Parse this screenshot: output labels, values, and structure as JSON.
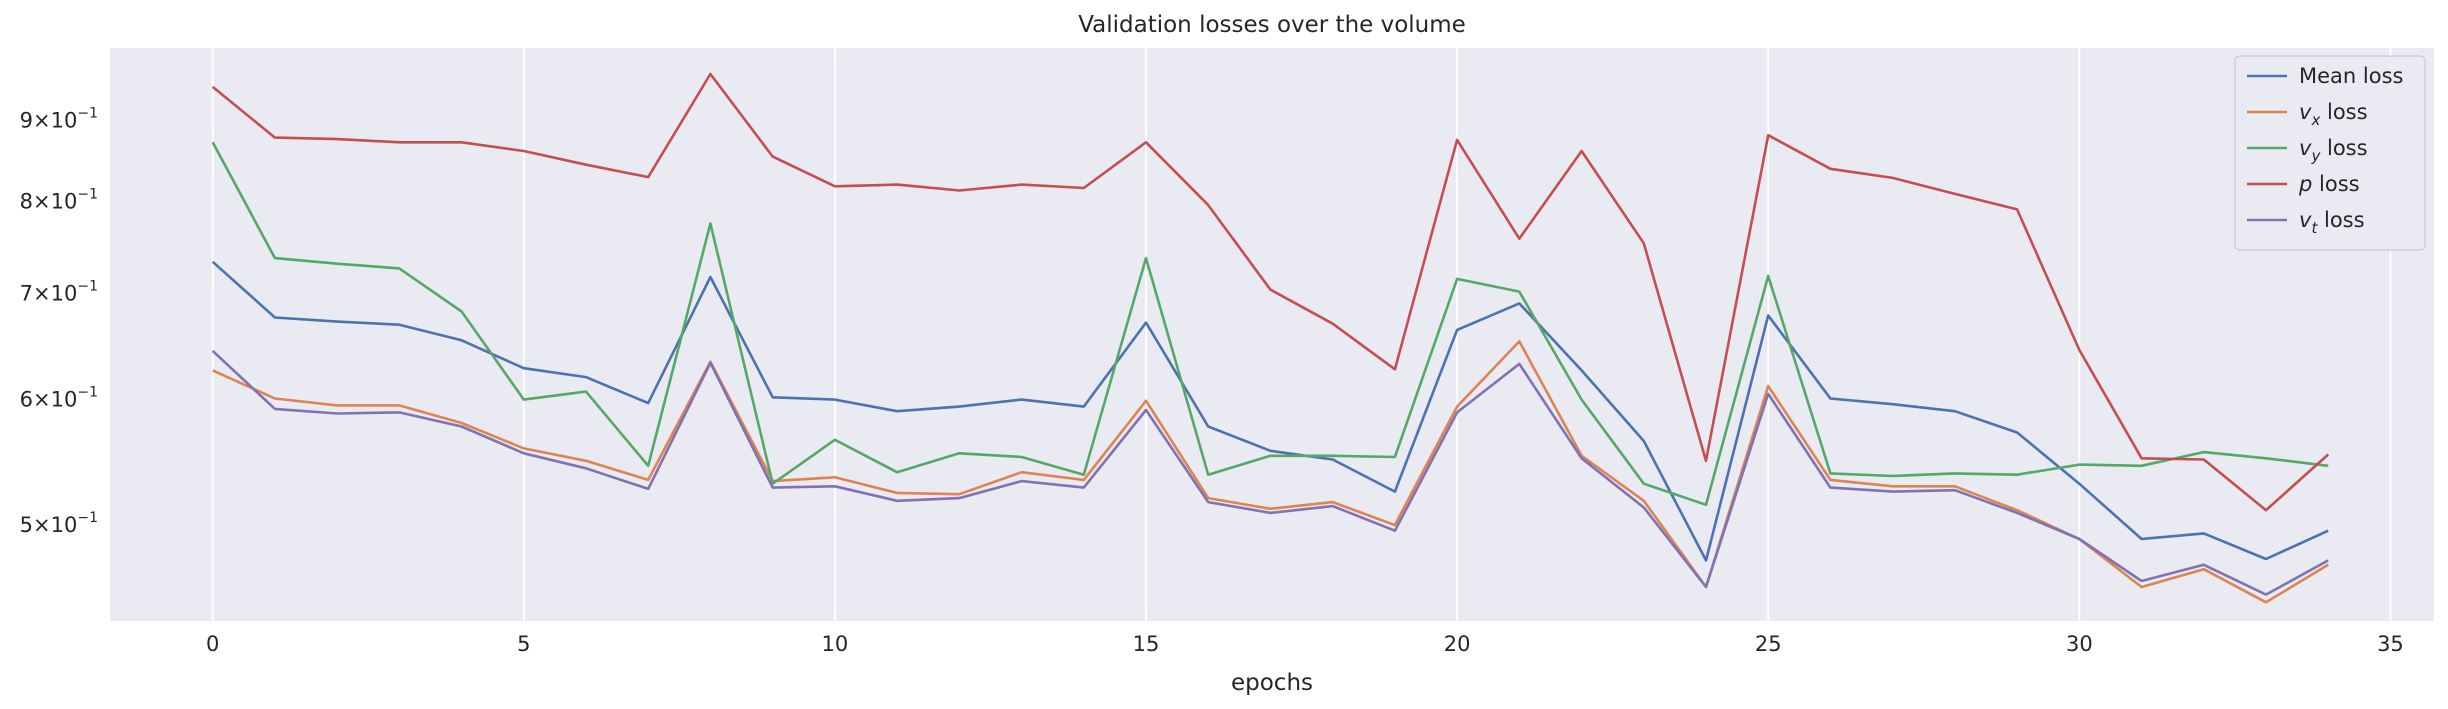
{
  "chart_data": {
    "type": "line",
    "title": "Validation losses over the volume",
    "xlabel": "epochs",
    "ylabel": "",
    "yscale": "log",
    "xlim": [
      -1.65,
      35.7
    ],
    "ylim": [
      0.435,
      1.0
    ],
    "x_ticks": [
      0,
      5,
      10,
      15,
      20,
      25,
      30,
      35
    ],
    "x_tick_labels": [
      "0",
      "5",
      "10",
      "15",
      "20",
      "25",
      "30",
      "35"
    ],
    "y_ticks": [
      {
        "value": 0.5,
        "mantissa": "5",
        "exponent": "−1"
      },
      {
        "value": 0.6,
        "mantissa": "6",
        "exponent": "−1"
      },
      {
        "value": 0.7,
        "mantissa": "7",
        "exponent": "−1"
      },
      {
        "value": 0.8,
        "mantissa": "8",
        "exponent": "−1"
      },
      {
        "value": 0.9,
        "mantissa": "9",
        "exponent": "−1"
      }
    ],
    "grid": true,
    "legend_position": "top-right",
    "x": [
      0,
      1,
      2,
      3,
      4,
      5,
      6,
      7,
      8,
      9,
      10,
      11,
      12,
      13,
      14,
      15,
      16,
      17,
      18,
      19,
      20,
      21,
      22,
      23,
      24,
      25,
      26,
      27,
      28,
      29,
      30,
      31,
      32,
      33,
      34
    ],
    "series": [
      {
        "name": "Mean loss",
        "label_main": "Mean loss",
        "label_sub": "",
        "label_suffix": "",
        "color": "#4c72b0",
        "values": [
          0.733,
          0.676,
          0.672,
          0.669,
          0.654,
          0.628,
          0.62,
          0.597,
          0.717,
          0.602,
          0.6,
          0.59,
          0.594,
          0.6,
          0.594,
          0.671,
          0.577,
          0.557,
          0.55,
          0.525,
          0.664,
          0.69,
          0.626,
          0.565,
          0.475,
          0.678,
          0.601,
          0.596,
          0.59,
          0.572,
          0.531,
          0.49,
          0.494,
          0.476,
          0.496
        ]
      },
      {
        "name": "v_x loss",
        "label_main": "v",
        "label_sub": "x",
        "label_suffix": " loss",
        "color": "#dd8452",
        "values": [
          0.626,
          0.601,
          0.595,
          0.595,
          0.58,
          0.559,
          0.549,
          0.534,
          0.634,
          0.533,
          0.536,
          0.524,
          0.523,
          0.54,
          0.534,
          0.599,
          0.52,
          0.512,
          0.517,
          0.5,
          0.594,
          0.653,
          0.553,
          0.518,
          0.457,
          0.612,
          0.534,
          0.529,
          0.529,
          0.511,
          0.49,
          0.457,
          0.469,
          0.447,
          0.472
        ]
      },
      {
        "name": "v_y loss",
        "label_main": "v",
        "label_sub": "y",
        "label_suffix": " loss",
        "color": "#55a868",
        "values": [
          0.872,
          0.737,
          0.731,
          0.726,
          0.682,
          0.6,
          0.607,
          0.545,
          0.775,
          0.531,
          0.566,
          0.54,
          0.555,
          0.552,
          0.538,
          0.737,
          0.538,
          0.553,
          0.553,
          0.552,
          0.715,
          0.702,
          0.6,
          0.531,
          0.515,
          0.718,
          0.539,
          0.537,
          0.539,
          0.538,
          0.546,
          0.545,
          0.556,
          0.551,
          0.545
        ]
      },
      {
        "name": "p loss",
        "label_main": "p",
        "label_sub": "",
        "label_suffix": " loss",
        "color": "#c44e52",
        "values": [
          0.945,
          0.878,
          0.876,
          0.872,
          0.872,
          0.861,
          0.844,
          0.829,
          0.963,
          0.854,
          0.818,
          0.82,
          0.813,
          0.82,
          0.816,
          0.872,
          0.796,
          0.704,
          0.67,
          0.627,
          0.875,
          0.758,
          0.861,
          0.753,
          0.549,
          0.881,
          0.839,
          0.828,
          0.809,
          0.791,
          0.645,
          0.551,
          0.55,
          0.511,
          0.554
        ]
      },
      {
        "name": "v_t loss",
        "label_main": "v",
        "label_sub": "t",
        "label_suffix": " loss",
        "color": "#8172b3",
        "values": [
          0.644,
          0.592,
          0.588,
          0.589,
          0.577,
          0.555,
          0.543,
          0.527,
          0.633,
          0.528,
          0.529,
          0.518,
          0.52,
          0.533,
          0.528,
          0.591,
          0.517,
          0.509,
          0.514,
          0.496,
          0.589,
          0.632,
          0.551,
          0.513,
          0.457,
          0.605,
          0.528,
          0.525,
          0.526,
          0.509,
          0.49,
          0.461,
          0.472,
          0.452,
          0.475
        ]
      }
    ]
  }
}
